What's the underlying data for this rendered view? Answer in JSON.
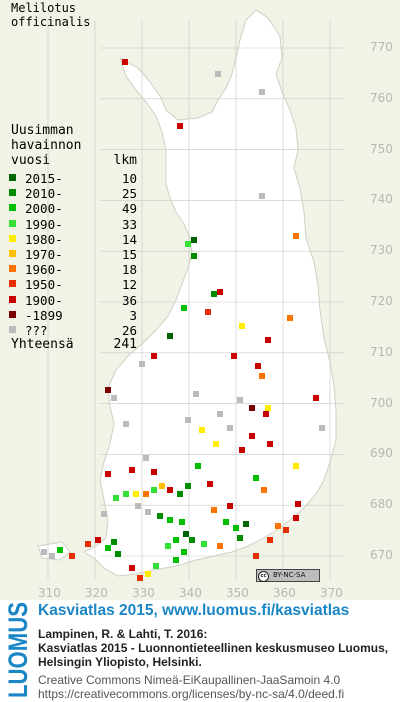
{
  "species": {
    "line1": "Melilotus",
    "line2": "officinalis"
  },
  "legend": {
    "title1": "Uusimman",
    "title2": "havainnon",
    "header_year": "vuosi",
    "header_count": "lkm",
    "rows": [
      {
        "label": "2015-",
        "count": "10",
        "color": "#006400"
      },
      {
        "label": "2010-",
        "count": "25",
        "color": "#008c00"
      },
      {
        "label": "2000-",
        "count": "49",
        "color": "#00be00"
      },
      {
        "label": "1990-",
        "count": "33",
        "color": "#33e033"
      },
      {
        "label": "1980-",
        "count": "14",
        "color": "#ffee00"
      },
      {
        "label": "1970-",
        "count": "15",
        "color": "#ffbf00"
      },
      {
        "label": "1960-",
        "count": "18",
        "color": "#ff7400"
      },
      {
        "label": "1950-",
        "count": "12",
        "color": "#e62e00"
      },
      {
        "label": "1900-",
        "count": "36",
        "color": "#c80000"
      },
      {
        "label": "-1899",
        "count": "3",
        "color": "#7a0000"
      },
      {
        "label": "???",
        "count": "26",
        "color": "#bbbbbb"
      }
    ],
    "total_label": "Yhteensä",
    "total_count": "241"
  },
  "axes": {
    "y_ticks": [
      "770",
      "760",
      "750",
      "740",
      "730",
      "720",
      "710",
      "700",
      "690",
      "680",
      "670"
    ],
    "x_ticks": [
      "310",
      "320",
      "330",
      "340",
      "350",
      "360",
      "370"
    ]
  },
  "license_badge": "BY-NC-SA",
  "footer": {
    "logo_text": "LUOMUS",
    "title": "Kasviatlas 2015, www.luomus.fi/kasviatlas",
    "citation1": "Lampinen, R. & Lahti, T. 2016:",
    "citation2": "Kasviatlas 2015 - Luonnontieteellinen keskusmuseo Luomus,",
    "citation3": "Helsingin Yliopisto, Helsinki.",
    "license1": "Creative Commons Nimeä-EiKaupallinen-JaaSamoin 4.0",
    "license2": "https://creativecommons.org/licenses/by-nc-sa/4.0/deed.fi"
  },
  "colors": {
    "footer_accent": "#1a86c6",
    "map_background": "#f1f3e6",
    "land": "#ffffff",
    "grid": "#c8c8c8"
  }
}
